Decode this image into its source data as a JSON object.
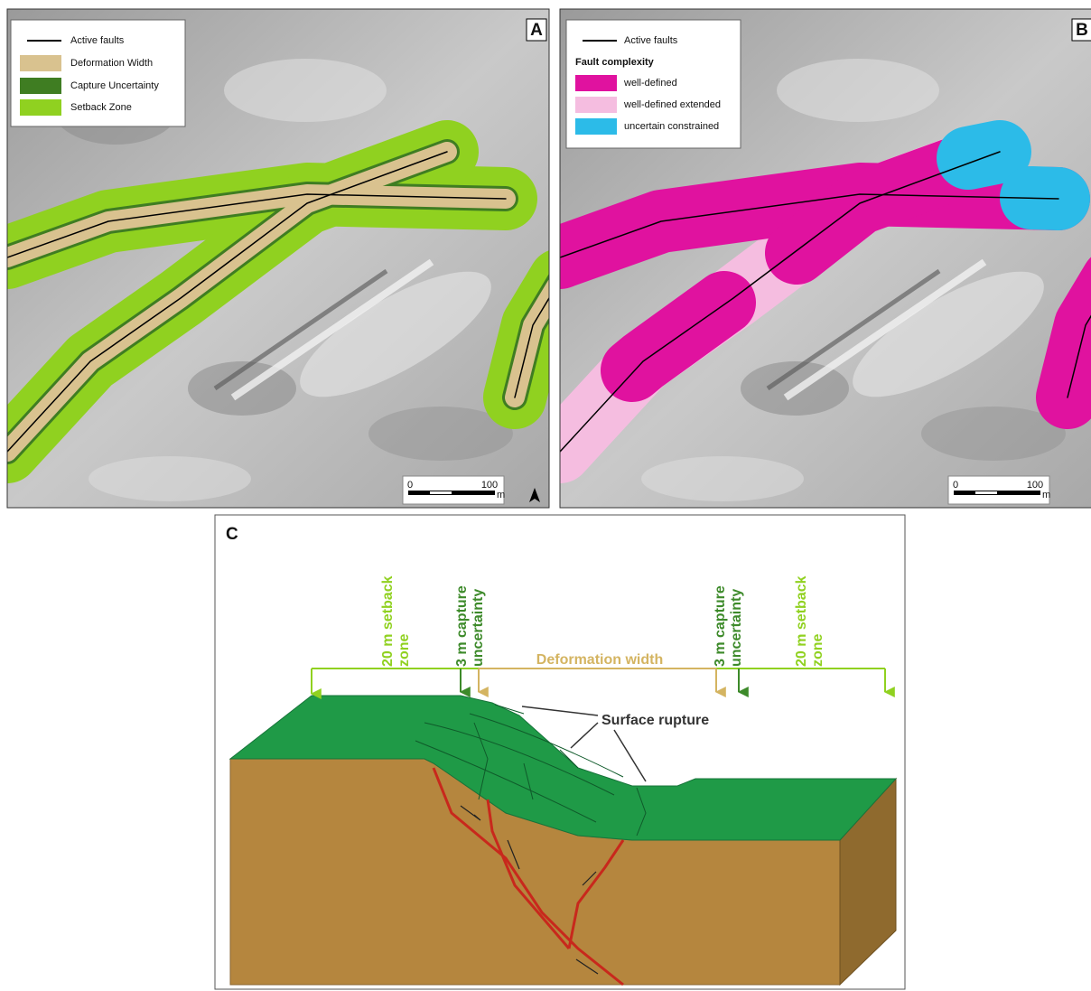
{
  "panels": [
    {
      "label": "A",
      "legend": {
        "items": [
          "Active faults",
          "Deformation Width",
          "Capture Uncertainty",
          "Setback Zone"
        ]
      },
      "scale": {
        "ticks": [
          0,
          100
        ],
        "unit": "m"
      }
    },
    {
      "label": "B",
      "legend": {
        "items": [
          "Active faults",
          "well-defined",
          "well-defined extended",
          "uncertain constrained"
        ],
        "heading": "Fault complexity"
      },
      "scale": {
        "ticks": [
          0,
          100
        ],
        "unit": "m"
      }
    }
  ],
  "diagram": {
    "label": "C",
    "setback_left": [
      "20 m setback",
      "zone"
    ],
    "capture_left": [
      "3 m capture",
      "uncertainty"
    ],
    "deformation": "Deformation width",
    "capture_right": [
      "3 m capture",
      "uncertainty"
    ],
    "setback_right": [
      "20 m setback",
      "zone"
    ],
    "rupture": "Surface rupture"
  }
}
